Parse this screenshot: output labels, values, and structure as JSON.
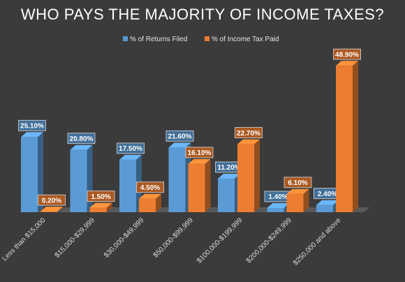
{
  "chart_data": {
    "type": "bar",
    "title": "WHO PAYS THE MAJORITY OF INCOME TAXES?",
    "xlabel": "",
    "ylabel": "",
    "ylim": [
      0,
      55
    ],
    "grid": false,
    "legend_position": "top-center",
    "categories": [
      "Less than $15,000",
      "$15,000-$29,999",
      "$30,000-$49,999",
      "$50,000-$99,999",
      "$100,000-$199,999",
      "$200,000-$249,999",
      "$250,000 and above"
    ],
    "series": [
      {
        "name": "% of Returns Filed",
        "values": [
          25.1,
          20.8,
          17.5,
          21.6,
          11.2,
          1.4,
          2.4
        ],
        "labels": [
          "25.10%",
          "20.80%",
          "17.50%",
          "21.60%",
          "11.20%",
          "1.40%",
          "2.40%"
        ],
        "color": "#5b9bd5"
      },
      {
        "name": "% of Income Tax Paid",
        "values": [
          0.2,
          1.5,
          4.5,
          16.1,
          22.7,
          6.1,
          48.9
        ],
        "labels": [
          "0.20%",
          "1.50%",
          "4.50%",
          "16.10%",
          "22.70%",
          "6.10%",
          "48.90%"
        ],
        "color": "#ed7d31"
      }
    ]
  },
  "colors": {
    "background": "#3b3b3b",
    "text": "#ffffff",
    "floor": "#595959"
  }
}
